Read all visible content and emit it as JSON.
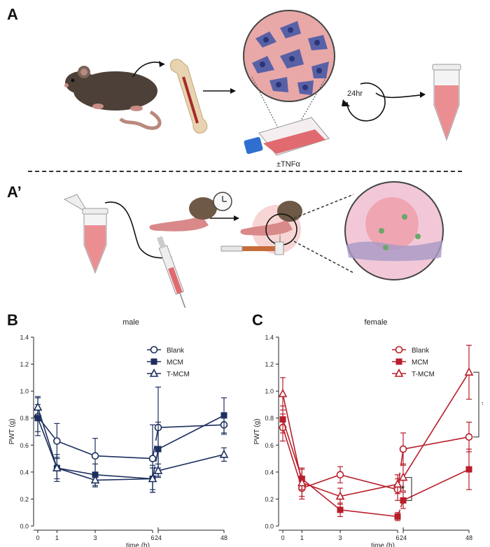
{
  "panels": {
    "a": "A",
    "a_prime": "A’",
    "b": "B",
    "c": "C"
  },
  "schematic": {
    "incubation_label": "24hr",
    "treatment_label": "±TNFα"
  },
  "chart_data": [
    {
      "type": "line",
      "title": "male",
      "xlabel": "time (h)",
      "ylabel": "PWT (g)",
      "x": [
        0,
        1,
        3,
        6,
        24,
        48
      ],
      "xticks": [
        "0",
        "1",
        "3",
        "6",
        "24",
        "48"
      ],
      "ylim": [
        0,
        1.4
      ],
      "yticks": [
        "0.0",
        "0.2",
        "0.4",
        "0.6",
        "0.8",
        "1.0",
        "1.2",
        "1.4"
      ],
      "axis_break": "between 6 and 24",
      "legend_position": "top-right",
      "color": "#1c2f5e",
      "series": [
        {
          "name": "Blank",
          "marker": "open-circle",
          "values": [
            0.81,
            0.63,
            0.52,
            0.5,
            0.73,
            0.75
          ],
          "error": [
            0.14,
            0.13,
            0.13,
            0.25,
            0.3,
            0.07
          ]
        },
        {
          "name": "MCM",
          "marker": "filled-square",
          "values": [
            0.8,
            0.43,
            0.38,
            0.35,
            0.57,
            0.82
          ],
          "error": [
            0.1,
            0.08,
            0.08,
            0.1,
            0.2,
            0.13
          ]
        },
        {
          "name": "T-MCM",
          "marker": "open-triangle",
          "values": [
            0.88,
            0.43,
            0.34,
            0.35,
            0.41,
            0.53
          ],
          "error": [
            0.08,
            0.1,
            0.05,
            0.08,
            0.05,
            0.05
          ]
        }
      ]
    },
    {
      "type": "line",
      "title": "female",
      "xlabel": "time (h)",
      "ylabel": "PWT (g)",
      "x": [
        0,
        1,
        3,
        6,
        24,
        48
      ],
      "xticks": [
        "0",
        "1",
        "3",
        "6",
        "24",
        "48"
      ],
      "ylim": [
        0,
        1.4
      ],
      "yticks": [
        "0.0",
        "0.2",
        "0.4",
        "0.6",
        "0.8",
        "1.0",
        "1.2",
        "1.4"
      ],
      "axis_break": "between 6 and 24",
      "legend_position": "top-right",
      "color": "#b81e2a",
      "series": [
        {
          "name": "Blank",
          "marker": "open-circle",
          "values": [
            0.73,
            0.28,
            0.38,
            0.27,
            0.57,
            0.66
          ],
          "error": [
            0.1,
            0.08,
            0.06,
            0.08,
            0.12,
            0.11
          ]
        },
        {
          "name": "MCM",
          "marker": "filled-square",
          "values": [
            0.79,
            0.35,
            0.12,
            0.07,
            0.19,
            0.42
          ],
          "error": [
            0.1,
            0.08,
            0.05,
            0.03,
            0.06,
            0.15
          ]
        },
        {
          "name": "T-MCM",
          "marker": "open-triangle",
          "values": [
            0.98,
            0.32,
            0.22,
            0.31,
            0.36,
            1.14
          ],
          "error": [
            0.12,
            0.1,
            0.06,
            0.07,
            0.1,
            0.2
          ]
        }
      ],
      "annotations": [
        "*",
        "*"
      ]
    }
  ]
}
